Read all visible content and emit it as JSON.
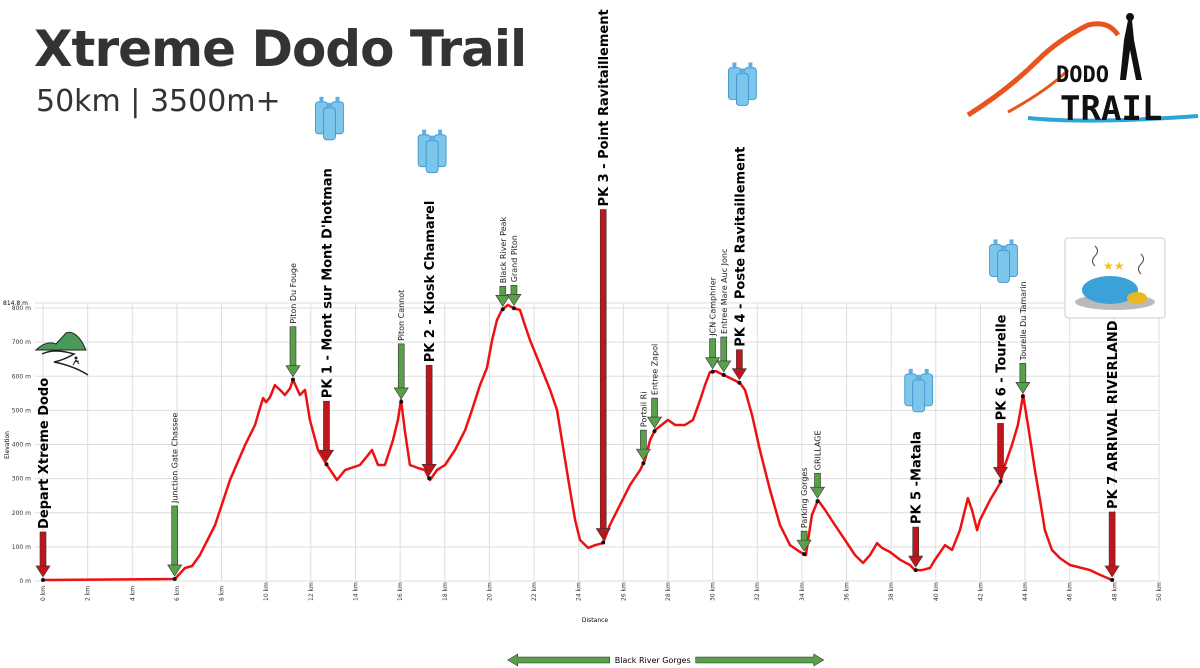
{
  "header": {
    "title": "Xtreme Dodo Trail",
    "subtitle": "50km | 3500m+",
    "logo_text": "DODO TRAIL"
  },
  "colors": {
    "profile": "#ee1111",
    "start_end_arrow": "#c0161b",
    "waypoint_arrow": "#5aa04a",
    "grid": "#dddddd",
    "logo_orange": "#e8541c"
  },
  "chart_data": {
    "type": "line",
    "xlabel": "Distance",
    "ylabel": "Elevation",
    "xlim": [
      0,
      50
    ],
    "ylim": [
      0,
      814.8
    ],
    "max_label": "814.8 m",
    "x_ticks": [
      "0 km",
      "2 km",
      "4 km",
      "6 km",
      "8 km",
      "10 km",
      "12 km",
      "14 km",
      "16 km",
      "18 km",
      "20 km",
      "22 km",
      "24 km",
      "26 km",
      "28 km",
      "30 km",
      "32 km",
      "34 km",
      "36 km",
      "38 km",
      "40 km",
      "42 km",
      "44 km",
      "46 km",
      "48 km",
      "50 km"
    ],
    "y_ticks": [
      "0 m",
      "100 m",
      "200 m",
      "300 m",
      "400 m",
      "500 m",
      "600 m",
      "700 m",
      "800 m"
    ],
    "grid": true,
    "x": [
      0,
      5.91,
      6.36,
      6.68,
      7.03,
      7.71,
      8.38,
      9.05,
      9.5,
      9.72,
      9.86,
      9.99,
      10.17,
      10.39,
      10.62,
      10.84,
      11.07,
      11.2,
      11.51,
      11.74,
      11.96,
      12.32,
      12.72,
      13.17,
      13.53,
      14.2,
      14.56,
      14.74,
      15.01,
      15.32,
      15.68,
      15.9,
      16.04,
      16.21,
      16.44,
      16.8,
      17.11,
      17.34,
      17.65,
      18.01,
      18.46,
      18.91,
      19.22,
      19.58,
      19.89,
      20.12,
      20.34,
      20.56,
      20.83,
      21.06,
      21.37,
      21.59,
      21.82,
      22.27,
      22.72,
      23.03,
      23.25,
      23.61,
      23.84,
      24.06,
      24.42,
      24.73,
      25.09,
      25.4,
      25.85,
      26.3,
      26.75,
      26.97,
      27.2,
      27.42,
      28.0,
      28.32,
      28.76,
      29.12,
      29.44,
      29.66,
      29.88,
      30.15,
      30.33,
      30.78,
      31.23,
      31.45,
      31.77,
      32.12,
      32.57,
      33.02,
      33.47,
      33.92,
      34.18,
      34.45,
      34.72,
      35.04,
      35.48,
      35.93,
      36.38,
      36.74,
      37.05,
      37.37,
      37.59,
      37.95,
      38.4,
      38.84,
      39.07,
      39.38,
      39.74,
      39.96,
      40.41,
      40.73,
      41.08,
      41.44,
      41.62,
      41.85,
      41.98,
      42.43,
      42.88,
      43.1,
      43.41,
      43.68,
      43.91,
      44.13,
      44.44,
      44.67,
      44.89,
      45.2,
      45.56,
      46.01,
      46.91,
      47.36,
      47.89
    ],
    "y": [
      3,
      6,
      38,
      44,
      76,
      164,
      296,
      398,
      457,
      507,
      536,
      524,
      539,
      574,
      560,
      545,
      565,
      590,
      545,
      560,
      472,
      384,
      340,
      296,
      325,
      340,
      369,
      384,
      340,
      340,
      413,
      472,
      530,
      442,
      340,
      331,
      325,
      296,
      325,
      340,
      384,
      442,
      501,
      574,
      624,
      706,
      765,
      794,
      809,
      800,
      794,
      750,
      706,
      633,
      560,
      501,
      413,
      267,
      179,
      120,
      97,
      105,
      111,
      164,
      223,
      281,
      325,
      355,
      413,
      442,
      472,
      457,
      457,
      472,
      530,
      574,
      612,
      615,
      609,
      595,
      580,
      560,
      486,
      384,
      267,
      164,
      105,
      85,
      76,
      193,
      237,
      208,
      164,
      120,
      76,
      53,
      76,
      111,
      97,
      85,
      62,
      47,
      32,
      32,
      38,
      62,
      105,
      91,
      149,
      243,
      208,
      149,
      179,
      237,
      287,
      340,
      398,
      457,
      545,
      457,
      325,
      237,
      149,
      91,
      67,
      47,
      32,
      18,
      3
    ],
    "markers": [
      {
        "km": 0,
        "label": "Depart Xtreme Dodo",
        "kind": "main",
        "water": false
      },
      {
        "km": 5.9,
        "label": "Junction Gate Chassee",
        "kind": "waypoint",
        "water": false
      },
      {
        "km": 11.2,
        "label": "Piton Du Fouge",
        "kind": "waypoint",
        "water": false
      },
      {
        "km": 12.7,
        "label": "PK 1 - Mont sur Mont D'hotman",
        "kind": "main",
        "water": true
      },
      {
        "km": 16.05,
        "label": "Piton Cannot",
        "kind": "waypoint",
        "water": false
      },
      {
        "km": 17.3,
        "label": "PK 2 - Kiosk Chamarel",
        "kind": "main",
        "water": true
      },
      {
        "km": 20.6,
        "label": "Black River Peak",
        "kind": "waypoint",
        "water": false
      },
      {
        "km": 21.1,
        "label": "Grand Piton",
        "kind": "waypoint",
        "water": false
      },
      {
        "km": 25.1,
        "label": "PK 3 - Point Ravitaillement",
        "kind": "main",
        "water": true
      },
      {
        "km": 26.9,
        "label": "Portail Ri",
        "kind": "waypoint",
        "water": false
      },
      {
        "km": 27.4,
        "label": "Entree Zapol",
        "kind": "waypoint",
        "water": false
      },
      {
        "km": 30.0,
        "label": "JCN Camphrier",
        "kind": "waypoint",
        "water": false
      },
      {
        "km": 30.5,
        "label": "Entree Mare Auc Jonc",
        "kind": "waypoint",
        "water": false
      },
      {
        "km": 31.2,
        "label": "PK 4 - Poste Ravitaillement",
        "kind": "main",
        "water": true
      },
      {
        "km": 34.1,
        "label": "Parking Gorges",
        "kind": "waypoint",
        "water": false
      },
      {
        "km": 34.7,
        "label": "GRILLAGE",
        "kind": "waypoint",
        "water": false
      },
      {
        "km": 39.1,
        "label": "PK 5 -Matala",
        "kind": "main",
        "water": true
      },
      {
        "km": 42.9,
        "label": "PK 6 - Tourelle",
        "kind": "main",
        "water": true
      },
      {
        "km": 43.9,
        "label": "Tourelle Du Tamarin",
        "kind": "waypoint",
        "water": false
      },
      {
        "km": 47.9,
        "label": "PK 7 ARRIVAL RIVERLAND",
        "kind": "main",
        "water": false
      }
    ],
    "span_annotation": {
      "label": "Black River Gorges",
      "from_km": 21,
      "to_km": 34.8
    }
  }
}
